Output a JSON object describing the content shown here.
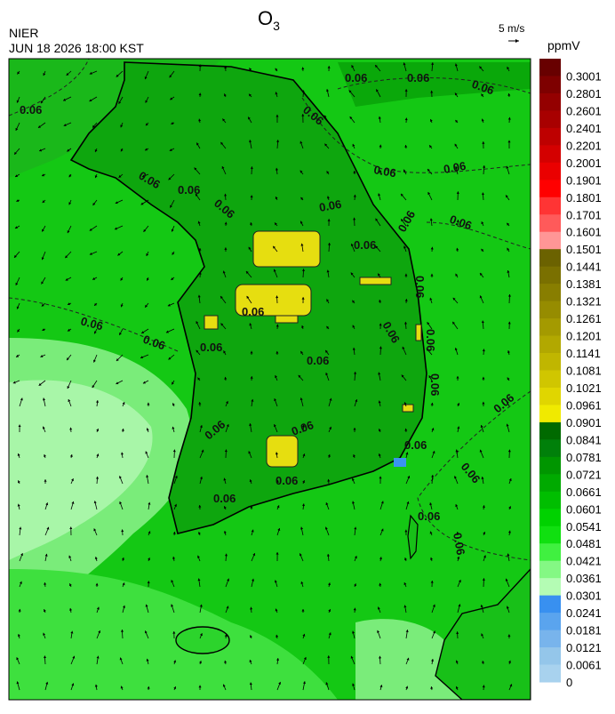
{
  "header": {
    "title": {
      "base": "O",
      "subscript": "3"
    },
    "agency": "NIER",
    "datetime": "JUN 18 2026 18:00 KST",
    "vector_scale": "5 m/s"
  },
  "map": {
    "contour_label": "0.06"
  },
  "legend": {
    "unit": "ppmV",
    "labels": [
      "0.3001",
      "0.2801",
      "0.2601",
      "0.2401",
      "0.2201",
      "0.2001",
      "0.1901",
      "0.1801",
      "0.1701",
      "0.1601",
      "0.1501",
      "0.1441",
      "0.1381",
      "0.1321",
      "0.1261",
      "0.1201",
      "0.1141",
      "0.1081",
      "0.1021",
      "0.0961",
      "0.0901",
      "0.0841",
      "0.0781",
      "0.0721",
      "0.0661",
      "0.0601",
      "0.0541",
      "0.0481",
      "0.0421",
      "0.0361",
      "0.0301",
      "0.0241",
      "0.0181",
      "0.0121",
      "0.0061",
      "0"
    ],
    "colors": [
      "#680000",
      "#7e0000",
      "#940000",
      "#a80000",
      "#be0000",
      "#d40000",
      "#ea0000",
      "#ff0000",
      "#ff3434",
      "#ff5a5a",
      "#ff9696",
      "#6b6200",
      "#7a7000",
      "#887e00",
      "#968c00",
      "#a49a00",
      "#b2a800",
      "#c0b600",
      "#d0c600",
      "#e0d600",
      "#f0ea00",
      "#006a00",
      "#00800a",
      "#009600",
      "#00aa00",
      "#00be00",
      "#00d200",
      "#10e010",
      "#40f040",
      "#84f884",
      "#b4fcb4",
      "#3890f0",
      "#5aa4ee",
      "#78b4ec",
      "#94c6ea",
      "#a8d2ee"
    ]
  }
}
